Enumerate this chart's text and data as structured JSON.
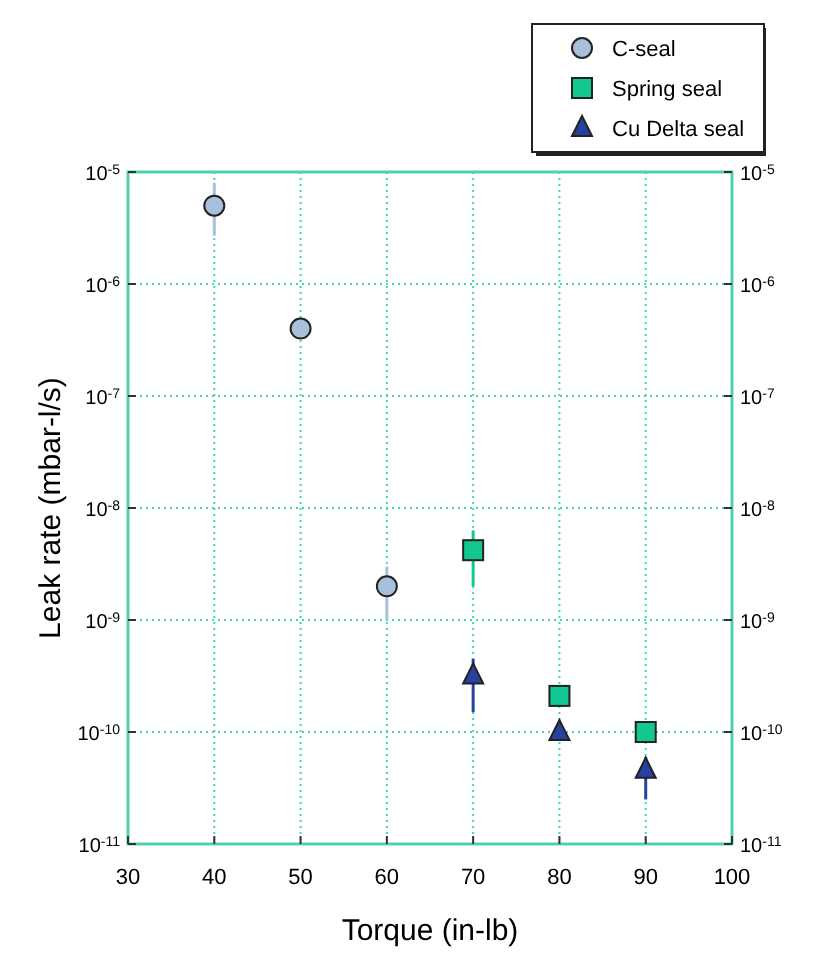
{
  "chart_data": {
    "type": "scatter",
    "xlabel": "Torque (in-lb)",
    "ylabel": "Leak rate (mbar-l/s)",
    "log": "y",
    "grid": true,
    "legend": "top right",
    "xlim": [
      30,
      100
    ],
    "xticks": [
      30,
      40,
      50,
      60,
      70,
      80,
      90,
      100
    ],
    "ylim": [
      1e-11,
      1e-05
    ],
    "yticks": [
      {
        "value": 1e-11,
        "label": "10$^{-11}$"
      },
      {
        "value": 1e-10,
        "label": "10$^{-10}$"
      },
      {
        "value": 1e-09,
        "label": "10$^{-9}$"
      },
      {
        "value": 1e-08,
        "label": "10$^{-8}$"
      },
      {
        "value": 1e-07,
        "label": "10$^{-7}$"
      },
      {
        "value": 1e-06,
        "label": "10$^{-6}$"
      },
      {
        "value": 1e-05,
        "label": "10$^{-5}$"
      }
    ],
    "series": [
      {
        "name": "C-seal",
        "color": "#a8c0dc",
        "marker": "circle",
        "x": [
          40,
          50,
          60
        ],
        "values": [
          5e-06,
          4e-07,
          2e-09
        ],
        "errors": [
          [
            2.7e-06,
            8e-06
          ],
          null,
          [
            1e-09,
            3e-09
          ]
        ]
      },
      {
        "name": "Spring seal",
        "color": "#10c890",
        "marker": "square",
        "x": [
          70,
          80,
          90
        ],
        "values": [
          4.2e-09,
          2.1e-10,
          1e-10
        ],
        "errors": [
          [
            2e-09,
            6.3e-09
          ],
          null,
          null
        ]
      },
      {
        "name": "Cu Delta seal",
        "color": "#2840a0",
        "marker": "triangle",
        "x": [
          70,
          80,
          90
        ],
        "values": [
          3.2e-10,
          1e-10,
          4.6e-11
        ],
        "errors": [
          [
            1.5e-10,
            4.5e-10
          ],
          null,
          [
            2.5e-11,
            6e-11
          ]
        ]
      }
    ]
  }
}
